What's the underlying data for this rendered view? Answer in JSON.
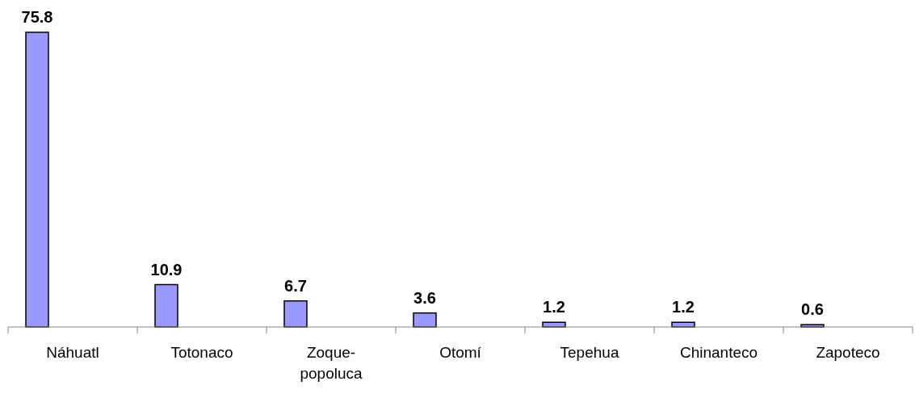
{
  "chart_data": {
    "type": "bar",
    "categories": [
      "Náhuatl",
      "Totonaco",
      "Zoque-popoluca",
      "Otomí",
      "Tepehua",
      "Chinanteco",
      "Zapoteco"
    ],
    "values": [
      75.8,
      10.9,
      6.7,
      3.6,
      1.2,
      1.2,
      0.6
    ],
    "color": "#9999ff",
    "data_labels": true
  }
}
